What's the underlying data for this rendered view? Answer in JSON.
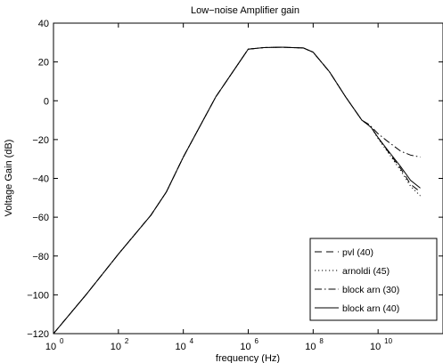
{
  "chart_data": {
    "type": "line",
    "title": "Low−noise Amplifier gain",
    "xlabel": "frequency (Hz)",
    "ylabel": "Voltage Gain (dB)",
    "xscale": "log",
    "xlim": [
      1,
      1000000000000
    ],
    "ylim": [
      -120,
      40
    ],
    "x_ticks": [
      {
        "value": 1,
        "base": "10",
        "exp": "0"
      },
      {
        "value": 100,
        "base": "10",
        "exp": "2"
      },
      {
        "value": 10000,
        "base": "10",
        "exp": "4"
      },
      {
        "value": 1000000,
        "base": "10",
        "exp": "6"
      },
      {
        "value": 100000000,
        "base": "10",
        "exp": "8"
      },
      {
        "value": 10000000000,
        "base": "10",
        "exp": "10"
      }
    ],
    "y_ticks": [
      -120,
      -100,
      -80,
      -60,
      -40,
      -20,
      0,
      20,
      40
    ],
    "grid": false,
    "legend_position": "bottom-right",
    "series": [
      {
        "name": "pvl (40)",
        "dash": "8,5",
        "x": [
          1,
          10,
          100,
          1000,
          3000,
          10000,
          100000,
          1000000,
          3000000,
          10000000,
          50000000,
          100000000,
          316000000,
          1000000000,
          3160000000,
          5000000000,
          6300000000,
          10000000000,
          20000000000,
          50000000000,
          100000000000,
          200000000000
        ],
        "y": [
          -120,
          -100,
          -79,
          -59,
          -47,
          -29,
          2,
          26.6,
          27.4,
          27.6,
          27.2,
          25,
          15,
          2,
          -10,
          -12.5,
          -14,
          -19,
          -26,
          -35,
          -43,
          -47
        ]
      },
      {
        "name": "arnoldi (45)",
        "dash": "1.2,2.8",
        "x": [
          1,
          10,
          100,
          1000,
          3000,
          10000,
          100000,
          1000000,
          3000000,
          10000000,
          50000000,
          100000000,
          316000000,
          1000000000,
          3160000000,
          5000000000,
          6300000000,
          10000000000,
          20000000000,
          50000000000,
          100000000000,
          200000000000
        ],
        "y": [
          -120,
          -100,
          -79,
          -59,
          -47,
          -29,
          2,
          26.6,
          27.4,
          27.6,
          27.2,
          25,
          15,
          2,
          -10,
          -12.5,
          -14,
          -19.5,
          -26.5,
          -36,
          -44,
          -49
        ]
      },
      {
        "name": "block arn (30)",
        "dash": "8,3,1.5,3",
        "x": [
          1,
          10,
          100,
          1000,
          3000,
          10000,
          100000,
          1000000,
          3000000,
          10000000,
          50000000,
          100000000,
          316000000,
          1000000000,
          3160000000,
          5000000000,
          6300000000,
          10000000000,
          20000000000,
          50000000000,
          100000000000,
          200000000000
        ],
        "y": [
          -120,
          -100,
          -79,
          -59,
          -47,
          -29,
          2,
          26.6,
          27.4,
          27.6,
          27.2,
          25,
          15,
          2,
          -10,
          -12,
          -13.5,
          -17,
          -21,
          -26,
          -28,
          -29
        ]
      },
      {
        "name": "block arn (40)",
        "dash": "",
        "x": [
          1,
          10,
          100,
          1000,
          3000,
          10000,
          100000,
          1000000,
          3000000,
          10000000,
          50000000,
          100000000,
          316000000,
          1000000000,
          3160000000,
          5000000000,
          6300000000,
          10000000000,
          20000000000,
          50000000000,
          100000000000,
          200000000000
        ],
        "y": [
          -120,
          -100,
          -79,
          -59,
          -47,
          -29,
          2,
          26.6,
          27.4,
          27.6,
          27.2,
          25,
          15,
          2,
          -10,
          -12.5,
          -14,
          -19,
          -25.5,
          -34,
          -41,
          -45
        ]
      }
    ]
  }
}
